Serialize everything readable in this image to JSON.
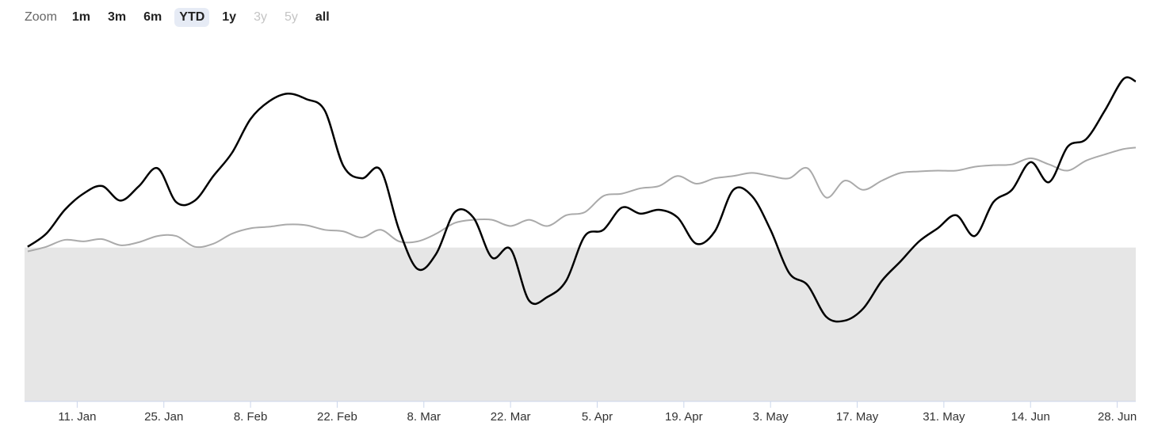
{
  "zoom": {
    "label": "Zoom",
    "buttons": [
      {
        "label": "1m",
        "state": "enabled"
      },
      {
        "label": "3m",
        "state": "enabled"
      },
      {
        "label": "6m",
        "state": "enabled"
      },
      {
        "label": "YTD",
        "state": "selected"
      },
      {
        "label": "1y",
        "state": "enabled"
      },
      {
        "label": "3y",
        "state": "disabled"
      },
      {
        "label": "5y",
        "state": "disabled"
      },
      {
        "label": "all",
        "state": "enabled"
      }
    ]
  },
  "chart_data": {
    "type": "line",
    "x": [
      2,
      5,
      8,
      11,
      14,
      17,
      20,
      23,
      26,
      29,
      32,
      35,
      38,
      41,
      44,
      47,
      50,
      53,
      56,
      59,
      62,
      65,
      68,
      71,
      74,
      77,
      80,
      83,
      86,
      89,
      92,
      95,
      98,
      101,
      104,
      107,
      110,
      113,
      116,
      119,
      122,
      125,
      128,
      131,
      134,
      137,
      140,
      143,
      146,
      149,
      152,
      155,
      158,
      161,
      164,
      167,
      170,
      173,
      176,
      179,
      181
    ],
    "series": [
      {
        "color": "#000000",
        "values": [
          0.1,
          1.8,
          4.9,
          7.0,
          8.0,
          6.1,
          8.0,
          10.3,
          5.9,
          6.1,
          9.3,
          12.3,
          16.7,
          19.0,
          20.0,
          19.3,
          17.8,
          10.6,
          9.0,
          10.1,
          2.3,
          -2.8,
          -0.8,
          4.6,
          3.9,
          -1.3,
          -0.2,
          -6.9,
          -6.4,
          -4.3,
          1.5,
          2.3,
          5.2,
          4.4,
          4.9,
          3.9,
          0.5,
          2.1,
          7.5,
          6.7,
          2.3,
          -3.3,
          -4.9,
          -9.0,
          -9.5,
          -7.9,
          -4.3,
          -1.8,
          0.8,
          2.5,
          4.2,
          1.5,
          5.9,
          7.5,
          11.1,
          8.5,
          13.1,
          14.1,
          17.8,
          21.9,
          21.6
        ]
      },
      {
        "color": "#aaaaaa",
        "values": [
          -0.5,
          0.1,
          1.0,
          0.8,
          1.1,
          0.3,
          0.7,
          1.5,
          1.5,
          0.1,
          0.5,
          1.8,
          2.5,
          2.7,
          3.0,
          2.9,
          2.3,
          2.1,
          1.3,
          2.3,
          0.8,
          0.8,
          1.8,
          3.2,
          3.6,
          3.6,
          2.8,
          3.6,
          2.8,
          4.2,
          4.6,
          6.7,
          7.0,
          7.7,
          8.0,
          9.3,
          8.3,
          9.0,
          9.3,
          9.7,
          9.3,
          9.0,
          10.3,
          6.5,
          8.7,
          7.5,
          8.7,
          9.7,
          9.9,
          10.0,
          10.0,
          10.5,
          10.7,
          10.8,
          11.6,
          10.8,
          10.0,
          11.3,
          12.1,
          12.8,
          13.0
        ]
      }
    ],
    "xlim": [
      1.5,
      181
    ],
    "xticks": [
      {
        "value": 10,
        "label": "11. Jan"
      },
      {
        "value": 24,
        "label": "25. Jan"
      },
      {
        "value": 38,
        "label": "8. Feb"
      },
      {
        "value": 52,
        "label": "22. Feb"
      },
      {
        "value": 66,
        "label": "8. Mar"
      },
      {
        "value": 80,
        "label": "22. Mar"
      },
      {
        "value": 94,
        "label": "5. Apr"
      },
      {
        "value": 108,
        "label": "19. Apr"
      },
      {
        "value": 122,
        "label": "3. May"
      },
      {
        "value": 136,
        "label": "17. May"
      },
      {
        "value": 150,
        "label": "31. May"
      },
      {
        "value": 164,
        "label": "14. Jun"
      },
      {
        "value": 178,
        "label": "28. Jun"
      }
    ],
    "ylim": [
      -20,
      26
    ],
    "threshold": 0,
    "threshold_color": "#e6e6e6"
  }
}
